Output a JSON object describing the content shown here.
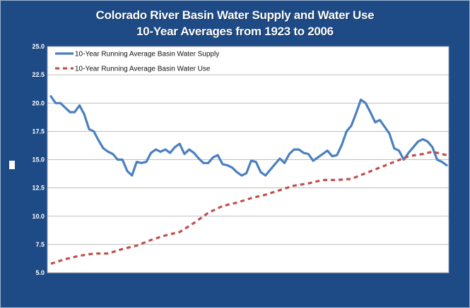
{
  "chart_data": {
    "type": "line",
    "title": "Colorado River Basin Water Supply and Water Use",
    "subtitle": "10-Year Averages from 1923 to 2006",
    "ylim": [
      5.0,
      25.0
    ],
    "yticks": [
      "25.0",
      "22.5",
      "20.0",
      "17.5",
      "15.0",
      "12.5",
      "10.0",
      "7.5",
      "5.0"
    ],
    "ytick_values": [
      25,
      22.5,
      20,
      17.5,
      15,
      12.5,
      10,
      7.5,
      5
    ],
    "xlim": [
      1923,
      2006
    ],
    "grid": true,
    "legend_position": "top-left",
    "series": [
      {
        "name": "10-Year Running Average Basin Water Supply",
        "color": "#4a7fbf",
        "style": "solid",
        "x": [
          1923,
          1924,
          1925,
          1926,
          1927,
          1928,
          1929,
          1930,
          1931,
          1932,
          1933,
          1934,
          1935,
          1936,
          1937,
          1938,
          1939,
          1940,
          1941,
          1942,
          1943,
          1944,
          1945,
          1946,
          1947,
          1948,
          1949,
          1950,
          1951,
          1952,
          1953,
          1954,
          1955,
          1956,
          1957,
          1958,
          1959,
          1960,
          1961,
          1962,
          1963,
          1964,
          1965,
          1966,
          1967,
          1968,
          1969,
          1970,
          1971,
          1972,
          1973,
          1974,
          1975,
          1976,
          1977,
          1978,
          1979,
          1980,
          1981,
          1982,
          1983,
          1984,
          1985,
          1986,
          1987,
          1988,
          1989,
          1990,
          1991,
          1992,
          1993,
          1994,
          1995,
          1996,
          1997,
          1998,
          1999,
          2000,
          2001,
          2002,
          2003,
          2004,
          2005,
          2006
        ],
        "values": [
          20.6,
          20.0,
          20.0,
          19.6,
          19.2,
          19.2,
          19.8,
          19.0,
          17.7,
          17.5,
          16.7,
          16.0,
          15.7,
          15.5,
          15.0,
          15.0,
          14.0,
          13.6,
          14.8,
          14.7,
          14.8,
          15.6,
          15.9,
          15.7,
          15.9,
          15.6,
          16.1,
          16.4,
          15.5,
          15.9,
          15.6,
          15.1,
          14.7,
          14.7,
          15.2,
          15.4,
          14.6,
          14.5,
          14.3,
          13.9,
          13.6,
          13.8,
          14.9,
          14.8,
          13.9,
          13.6,
          14.1,
          14.6,
          15.1,
          14.7,
          15.5,
          15.9,
          15.9,
          15.6,
          15.5,
          14.9,
          15.2,
          15.5,
          15.8,
          15.3,
          15.4,
          16.3,
          17.5,
          18.0,
          19.1,
          20.3,
          20.0,
          19.2,
          18.3,
          18.5,
          17.9,
          17.3,
          16.0,
          15.8,
          15.0,
          15.6,
          16.1,
          16.6,
          16.8,
          16.6,
          16.1,
          15.0,
          14.8,
          14.5
        ]
      },
      {
        "name": "10-Year Running Average Basin Water Use",
        "color": "#c0504d",
        "style": "dashed",
        "x": [
          1923,
          1926,
          1929,
          1932,
          1935,
          1938,
          1941,
          1944,
          1947,
          1950,
          1953,
          1956,
          1959,
          1962,
          1965,
          1968,
          1971,
          1974,
          1977,
          1980,
          1983,
          1986,
          1989,
          1992,
          1995,
          1998,
          2001,
          2003,
          2006
        ],
        "values": [
          5.8,
          6.2,
          6.5,
          6.7,
          6.7,
          7.1,
          7.4,
          7.9,
          8.3,
          8.6,
          9.4,
          10.3,
          10.9,
          11.2,
          11.6,
          11.9,
          12.3,
          12.7,
          12.9,
          13.2,
          13.2,
          13.3,
          13.8,
          14.3,
          14.8,
          15.3,
          15.5,
          15.7,
          15.4
        ]
      }
    ]
  }
}
